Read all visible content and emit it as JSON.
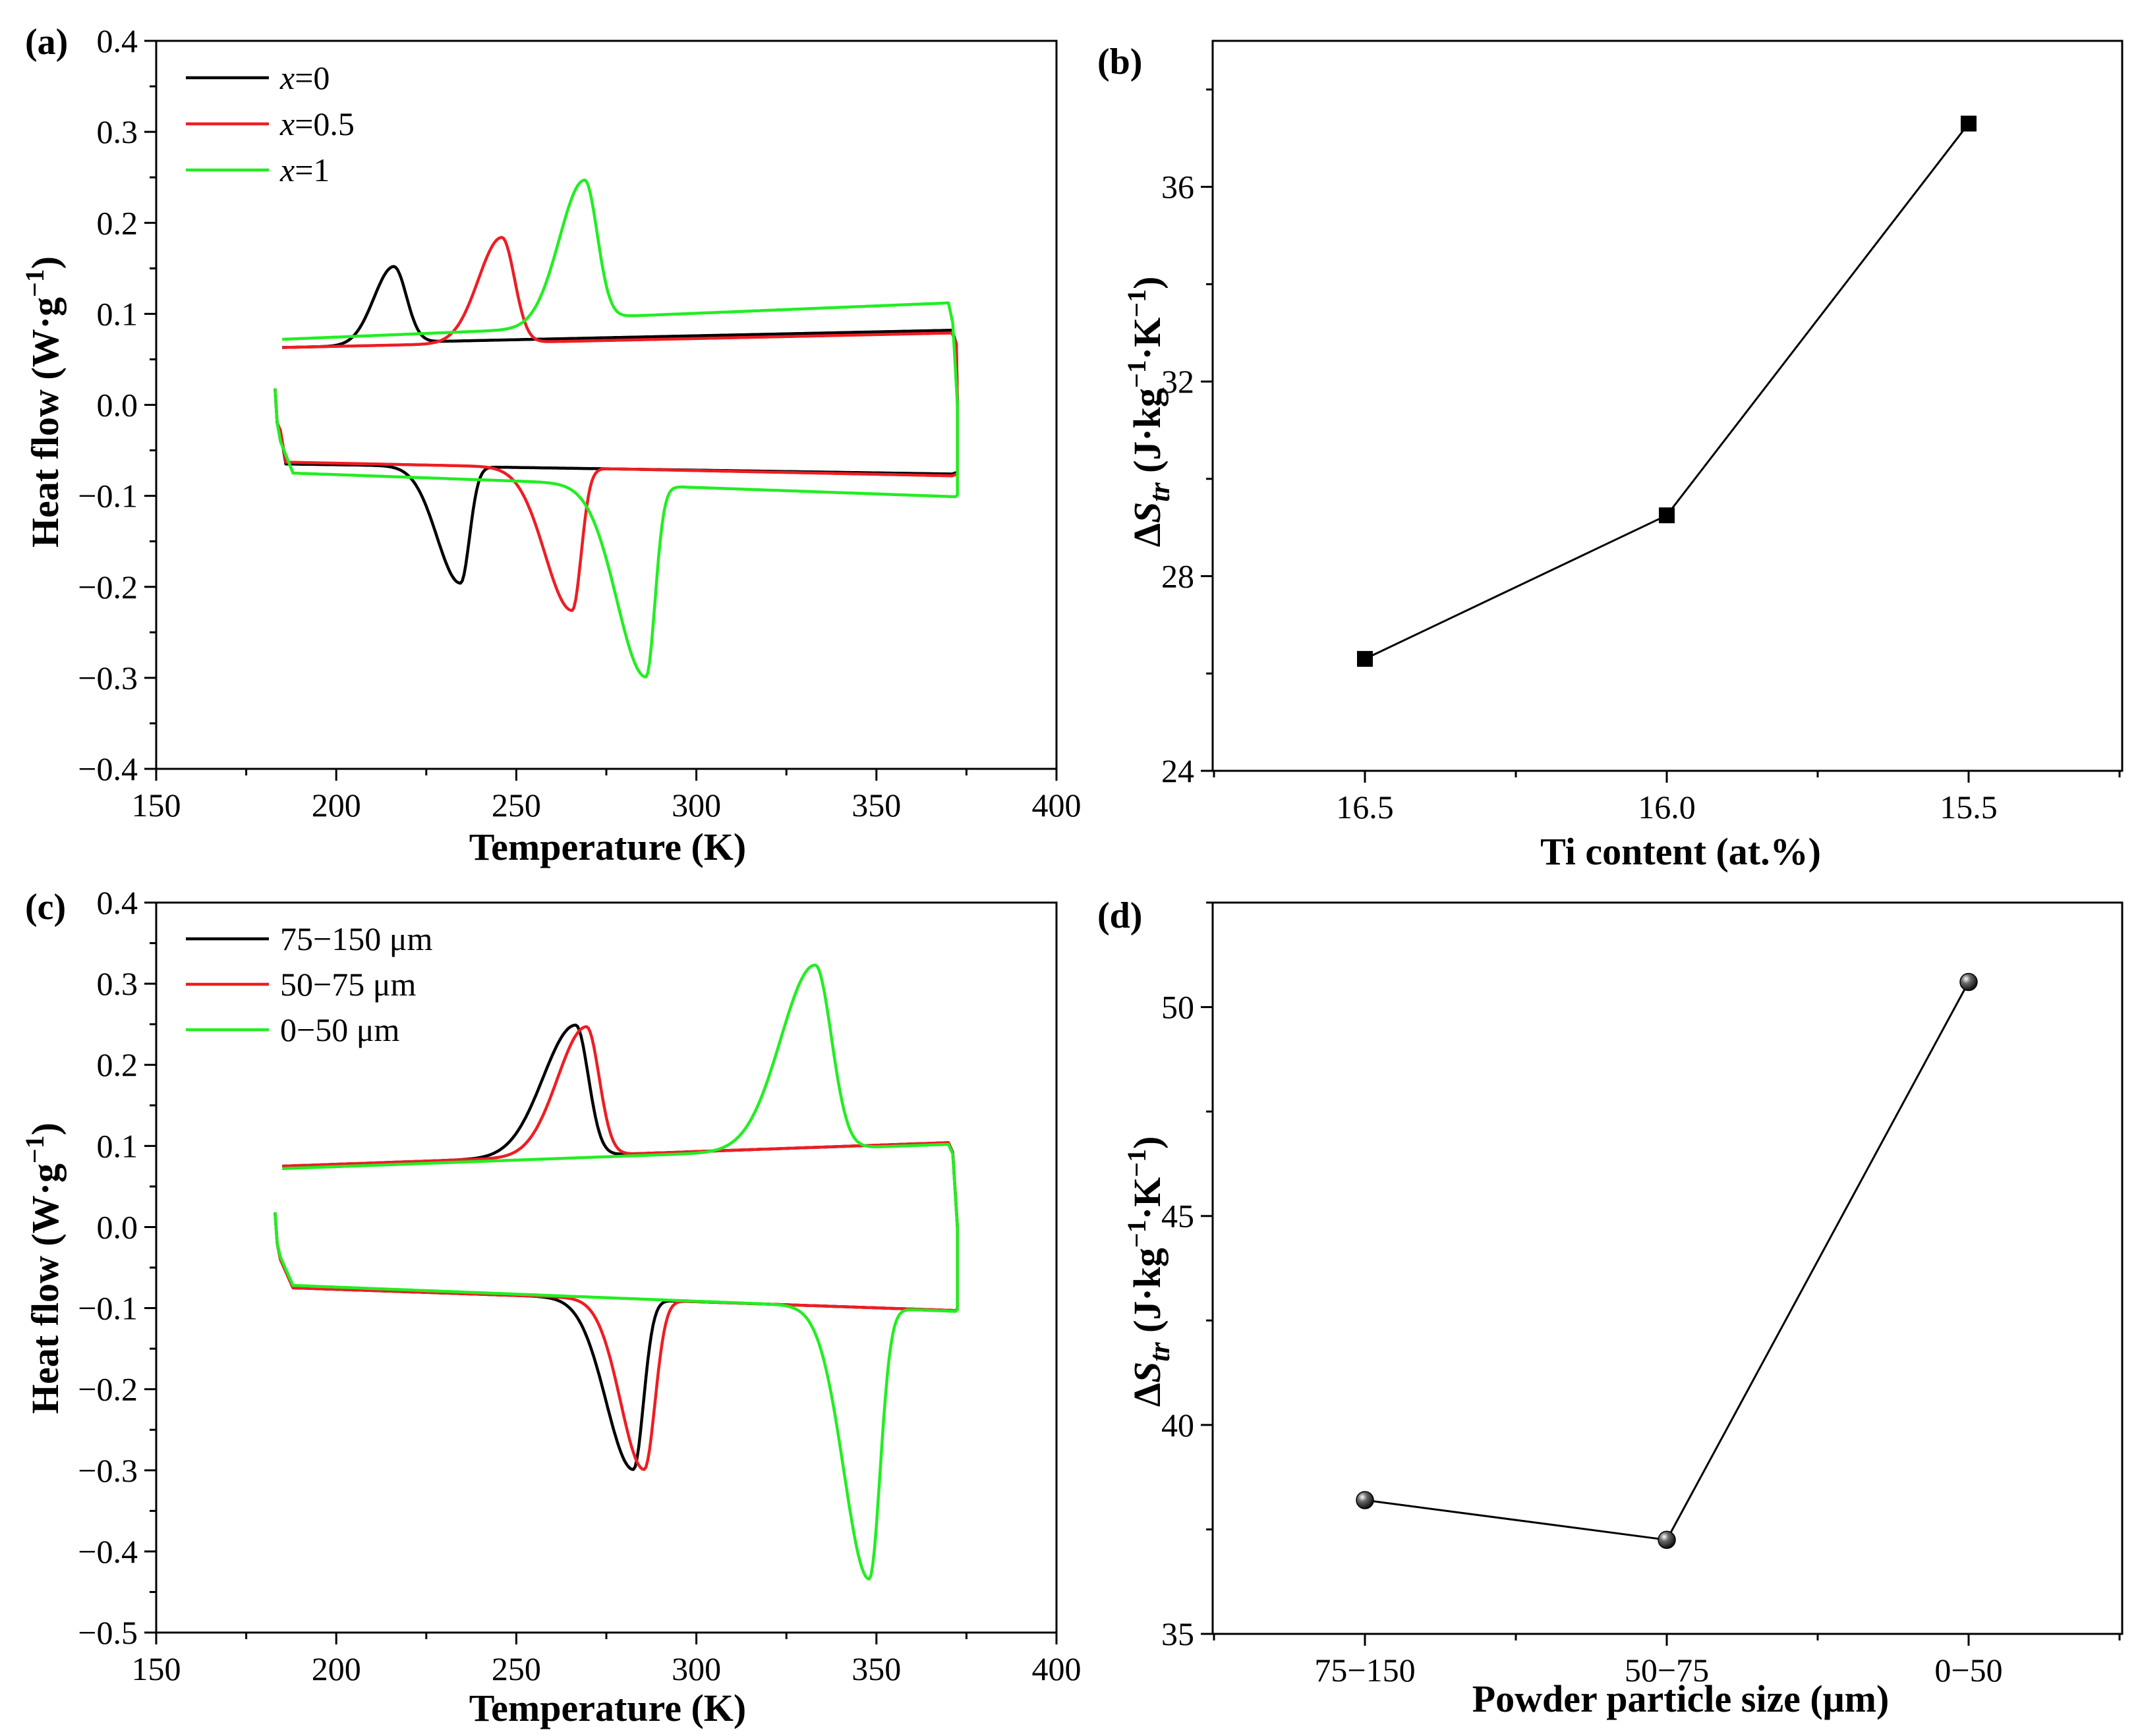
{
  "colors": {
    "black": "#000000",
    "red": "#ee1d23",
    "green": "#22ee22"
  },
  "chart_data": [
    {
      "id": "a",
      "type": "line",
      "panel_label": "(a)",
      "xlabel": "Temperature (K)",
      "ylabel_main": "Heat flow (W·g",
      "ylabel_sup": "−1",
      "ylabel_close": ")",
      "xlim": [
        150,
        400
      ],
      "ylim": [
        -0.4,
        0.4
      ],
      "xticks": [
        150,
        200,
        250,
        300,
        350,
        400
      ],
      "xtick_labels": [
        "150",
        "200",
        "250",
        "300",
        "350",
        "400"
      ],
      "yticks": [
        -0.4,
        -0.3,
        -0.2,
        -0.1,
        0.0,
        0.1,
        0.2,
        0.3,
        0.4
      ],
      "ytick_labels": [
        "−0.4",
        "−0.3",
        "−0.2",
        "−0.1",
        "0.0",
        "0.1",
        "0.2",
        "0.3",
        "0.4"
      ],
      "legend_position": "top-left",
      "series": [
        {
          "name": "x=0",
          "legend_var": "x",
          "legend_rest": "=0",
          "color": "#000000",
          "cooling": {
            "base_start": [
              185,
              0.063
            ],
            "base_end": [
              371,
              0.079
            ],
            "peak_T": 216,
            "peak_val": 0.152,
            "w_low": 5.5,
            "w_high": 3.5,
            "step": 0.003
          },
          "heating": {
            "base_start": [
              186,
              -0.065
            ],
            "base_end": [
              371,
              -0.076
            ],
            "peak_T": 234.5,
            "peak_val": -0.196,
            "w_low": 6.5,
            "w_high": 2.5,
            "step": 0.0
          }
        },
        {
          "name": "x=0.5",
          "legend_var": "x",
          "legend_rest": "=0.5",
          "color": "#ee1d23",
          "cooling": {
            "base_start": [
              185,
              0.063
            ],
            "base_end": [
              371,
              0.079
            ],
            "peak_T": 246,
            "peak_val": 0.184,
            "w_low": 6.5,
            "w_high": 3.5,
            "step": 0.0
          },
          "heating": {
            "base_start": [
              186,
              -0.063
            ],
            "base_end": [
              371,
              -0.078
            ],
            "peak_T": 265.5,
            "peak_val": -0.226,
            "w_low": 7.5,
            "w_high": 2.5,
            "step": 0.0
          }
        },
        {
          "name": "x=1",
          "legend_var": "x",
          "legend_rest": "=1",
          "color": "#22ee22",
          "cooling": {
            "base_start": [
              185,
              0.072
            ],
            "base_end": [
              370,
              0.102
            ],
            "peak_T": 269,
            "peak_val": 0.247,
            "w_low": 7,
            "w_high": 3.5,
            "step": 0.01
          },
          "heating": {
            "base_start": [
              188,
              -0.075
            ],
            "base_end": [
              372,
              -0.101
            ],
            "peak_T": 286,
            "peak_val": -0.299,
            "w_low": 8,
            "w_high": 2.5,
            "step": 0.0
          }
        }
      ]
    },
    {
      "id": "b",
      "type": "line",
      "panel_label": "(b)",
      "xlabel": "Ti content (at.%)",
      "ylabel_delta": "Δ",
      "ylabel_s": "S",
      "ylabel_sub": "tr",
      "ylabel_unit1": " (J·kg",
      "ylabel_sup1": "−1",
      "ylabel_unit2": "·K",
      "ylabel_sup2": "−1",
      "ylabel_close": ")",
      "categories": [
        "16.5",
        "16.0",
        "15.5"
      ],
      "values": [
        26.3,
        29.25,
        37.3
      ],
      "ylim": [
        24,
        39
      ],
      "yticks": [
        24,
        28,
        32,
        36
      ],
      "ytick_labels": [
        "24",
        "28",
        "32",
        "36"
      ],
      "marker": "square"
    },
    {
      "id": "c",
      "type": "line",
      "panel_label": "(c)",
      "xlabel": "Temperature (K)",
      "ylabel_main": "Heat flow (W·g",
      "ylabel_sup": "−1",
      "ylabel_close": ")",
      "xlim": [
        150,
        400
      ],
      "ylim": [
        -0.5,
        0.4
      ],
      "xticks": [
        150,
        200,
        250,
        300,
        350,
        400
      ],
      "xtick_labels": [
        "150",
        "200",
        "250",
        "300",
        "350",
        "400"
      ],
      "yticks": [
        -0.5,
        -0.4,
        -0.3,
        -0.2,
        -0.1,
        0.0,
        0.1,
        0.2,
        0.3,
        0.4
      ],
      "ytick_labels": [
        "−0.5",
        "−0.4",
        "−0.3",
        "−0.2",
        "−0.1",
        "0.0",
        "0.1",
        "0.2",
        "0.3",
        "0.4"
      ],
      "legend_position": "top-left",
      "series": [
        {
          "name": "75−150 μm",
          "legend_rest": "75−150 μm",
          "color": "#000000",
          "cooling": {
            "base_start": [
              185,
              0.075
            ],
            "base_end": [
              370,
              0.104
            ],
            "peak_T": 266.5,
            "peak_val": 0.249,
            "w_low": 9,
            "w_high": 3.5,
            "step": 0.0
          },
          "heating": {
            "base_start": [
              188,
              -0.075
            ],
            "base_end": [
              372,
              -0.103
            ],
            "peak_T": 282.5,
            "peak_val": -0.299,
            "w_low": 7.5,
            "w_high": 2.8,
            "step": 0.0
          }
        },
        {
          "name": "50−75 μm",
          "legend_rest": "50−75 μm",
          "color": "#ee1d23",
          "cooling": {
            "base_start": [
              185,
              0.075
            ],
            "base_end": [
              370,
              0.104
            ],
            "peak_T": 269.5,
            "peak_val": 0.247,
            "w_low": 8,
            "w_high": 3.5,
            "step": 0.0
          },
          "heating": {
            "base_start": [
              188,
              -0.075
            ],
            "base_end": [
              372,
              -0.103
            ],
            "peak_T": 285.5,
            "peak_val": -0.299,
            "w_low": 6.5,
            "w_high": 3,
            "step": 0.0
          }
        },
        {
          "name": "0−50 μm",
          "legend_rest": "0−50 μm",
          "color": "#22ee22",
          "cooling": {
            "base_start": [
              185,
              0.072
            ],
            "base_end": [
              370,
              0.102
            ],
            "peak_T": 333,
            "peak_val": 0.323,
            "w_low": 9.5,
            "w_high": 4.5,
            "step": 0.0
          },
          "heating": {
            "base_start": [
              188,
              -0.072
            ],
            "base_end": [
              372,
              -0.104
            ],
            "peak_T": 348,
            "peak_val": -0.434,
            "w_low": 7,
            "w_high": 3,
            "step": 0.0
          }
        }
      ]
    },
    {
      "id": "d",
      "type": "line",
      "panel_label": "(d)",
      "xlabel": "Powder particle size (μm)",
      "ylabel_delta": "Δ",
      "ylabel_s": "S",
      "ylabel_sub": "tr",
      "ylabel_unit1": " (J·kg",
      "ylabel_sup1": "−1",
      "ylabel_unit2": "·K",
      "ylabel_sup2": "−1",
      "ylabel_close": ")",
      "categories": [
        "75−150",
        "50−75",
        "0−50"
      ],
      "values": [
        38.2,
        37.25,
        50.6
      ],
      "ylim": [
        35,
        52.5
      ],
      "yticks": [
        35,
        40,
        45,
        50
      ],
      "ytick_labels": [
        "35",
        "40",
        "45",
        "50"
      ],
      "marker": "sphere"
    }
  ]
}
